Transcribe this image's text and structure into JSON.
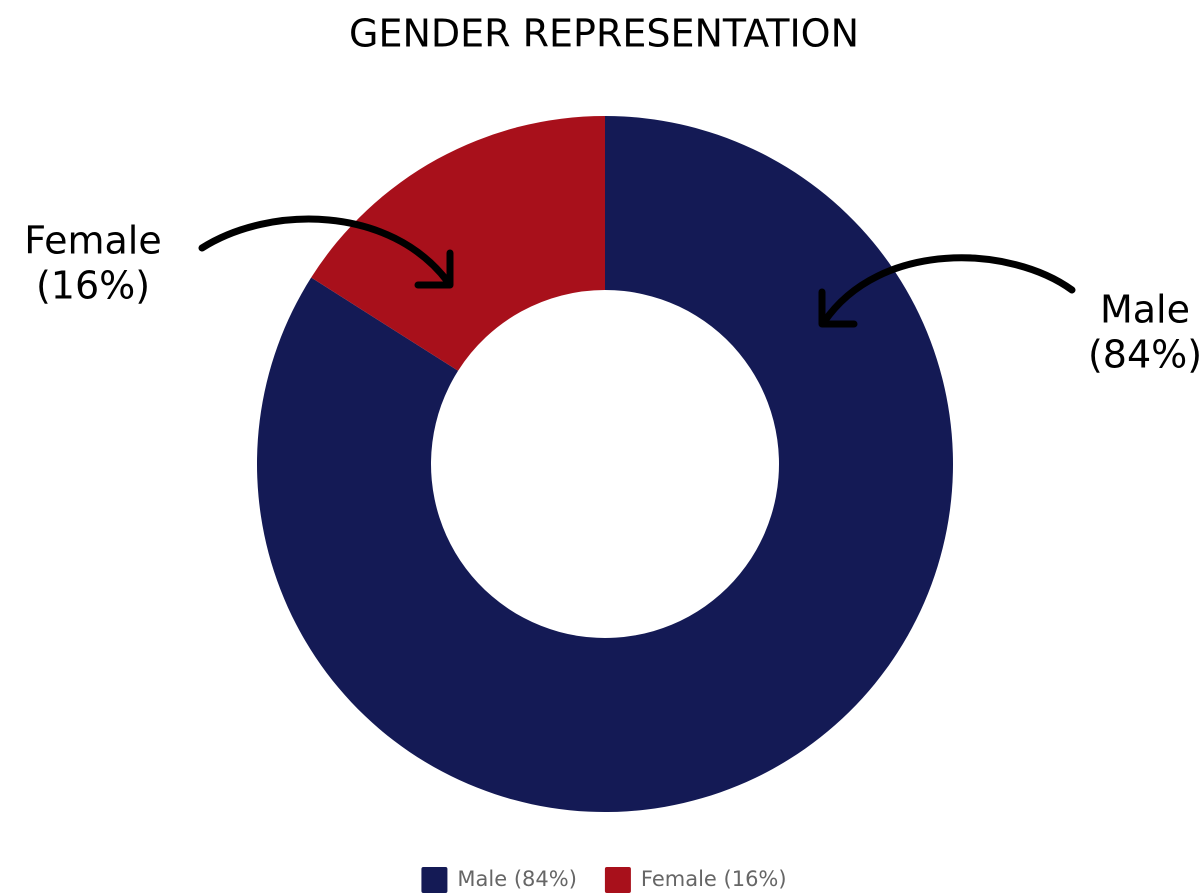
{
  "chart_data": {
    "type": "pie",
    "title": "GENDER REPRESENTATION",
    "categories": [
      "Male (84%)",
      "Female (16%)"
    ],
    "values": [
      84,
      16
    ],
    "colors": [
      "#141a55",
      "#a8101b"
    ],
    "donut": true,
    "annotations": [
      [
        "Female",
        "(16%)"
      ],
      [
        "Male",
        "(84%)"
      ]
    ],
    "legend": "bottom"
  }
}
